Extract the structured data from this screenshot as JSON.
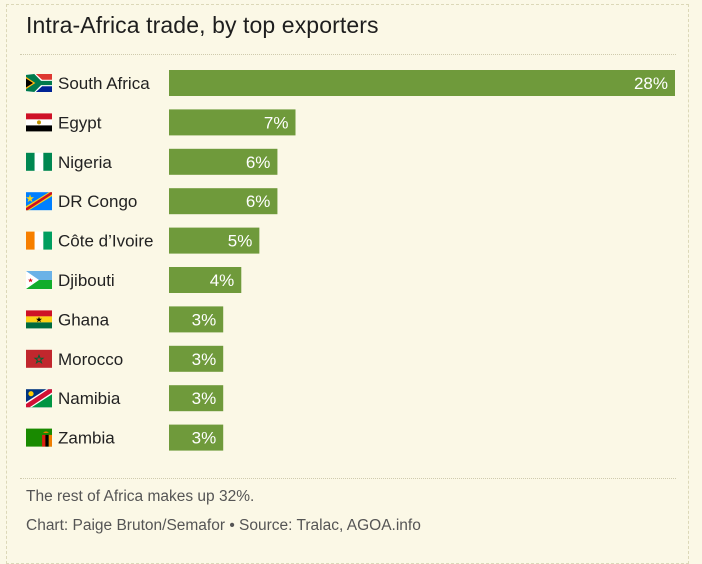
{
  "chart_data": {
    "type": "bar",
    "orientation": "horizontal",
    "title": "Intra-Africa trade, by top exporters",
    "categories": [
      "South Africa",
      "Egypt",
      "Nigeria",
      "DR Congo",
      "Côte d’Ivoire",
      "Djibouti",
      "Ghana",
      "Morocco",
      "Namibia",
      "Zambia"
    ],
    "values": [
      28,
      7,
      6,
      6,
      5,
      4,
      3,
      3,
      3,
      3
    ],
    "value_labels": [
      "28%",
      "7%",
      "6%",
      "6%",
      "5%",
      "4%",
      "3%",
      "3%",
      "3%",
      "3%"
    ],
    "flag_icons": [
      "south-africa-flag-icon",
      "egypt-flag-icon",
      "nigeria-flag-icon",
      "dr-congo-flag-icon",
      "cote-divoire-flag-icon",
      "djibouti-flag-icon",
      "ghana-flag-icon",
      "morocco-flag-icon",
      "namibia-flag-icon",
      "zambia-flag-icon"
    ],
    "xlim": [
      0,
      28
    ],
    "bar_color": "#6f9a3b",
    "grid": false,
    "legend": "none"
  },
  "footer": {
    "note": "The rest of Africa makes up 32%.",
    "credit": "Chart: Paige Bruton/Semafor • Source: Tralac, AGOA.info"
  }
}
